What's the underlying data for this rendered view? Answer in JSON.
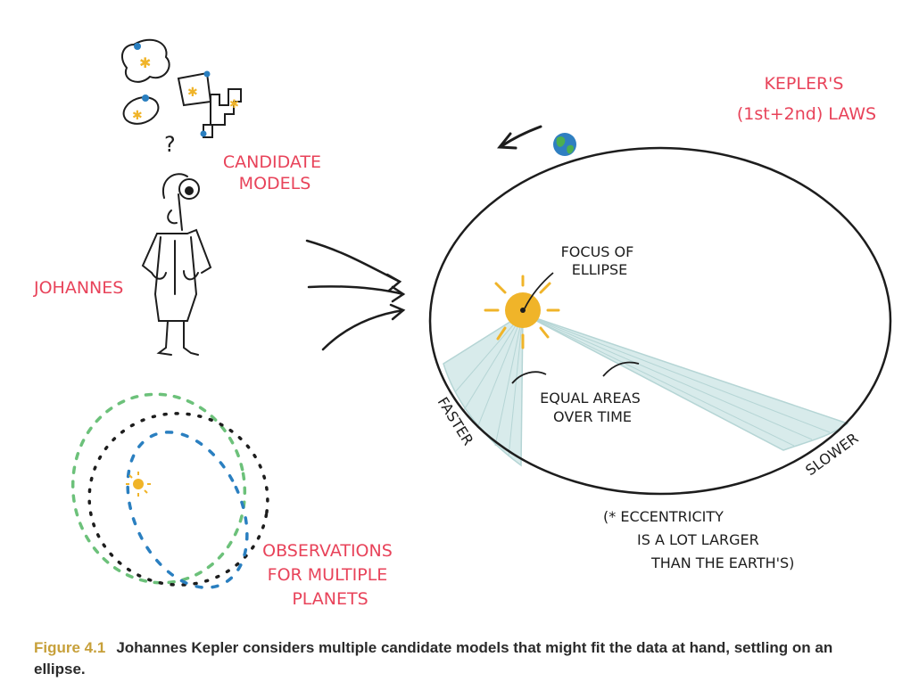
{
  "diagram": {
    "title_lines": [
      "KEPLER'S",
      "(1st+2nd) LAWS"
    ],
    "candidate_models_lines": [
      "CANDIDATE",
      "MODELS"
    ],
    "question_mark": "?",
    "person_label": "JOHANNES",
    "observations_lines": [
      "OBSERVATIONS",
      "FOR MULTIPLE",
      "PLANETS"
    ],
    "focus_lines": [
      "FOCUS OF",
      "ELLIPSE"
    ],
    "equal_areas_lines": [
      "EQUAL AREAS",
      "OVER TIME"
    ],
    "faster_label": "FASTER",
    "slower_label": "SLOWER",
    "eccentricity_lines": [
      "(* ECCENTRICITY",
      "IS A LOT LARGER",
      "THAN THE EARTH'S)"
    ],
    "colors": {
      "label_red": "#e8435a",
      "ink": "#1d1d1d",
      "sun": "#f0b429",
      "shade": "#cfe3e3",
      "earth_blue": "#2f7fc1",
      "earth_green": "#4caf50",
      "orbit_green": "#6cc17a",
      "orbit_blue": "#2a7fc0"
    },
    "icons": [
      "planet-model-icon",
      "person-icon",
      "sun-icon",
      "earth-icon",
      "arrow-icon"
    ]
  },
  "caption": {
    "label": "Figure 4.1",
    "text": "Johannes Kepler considers multiple candidate models that might fit the data at hand, settling on an ellipse."
  }
}
